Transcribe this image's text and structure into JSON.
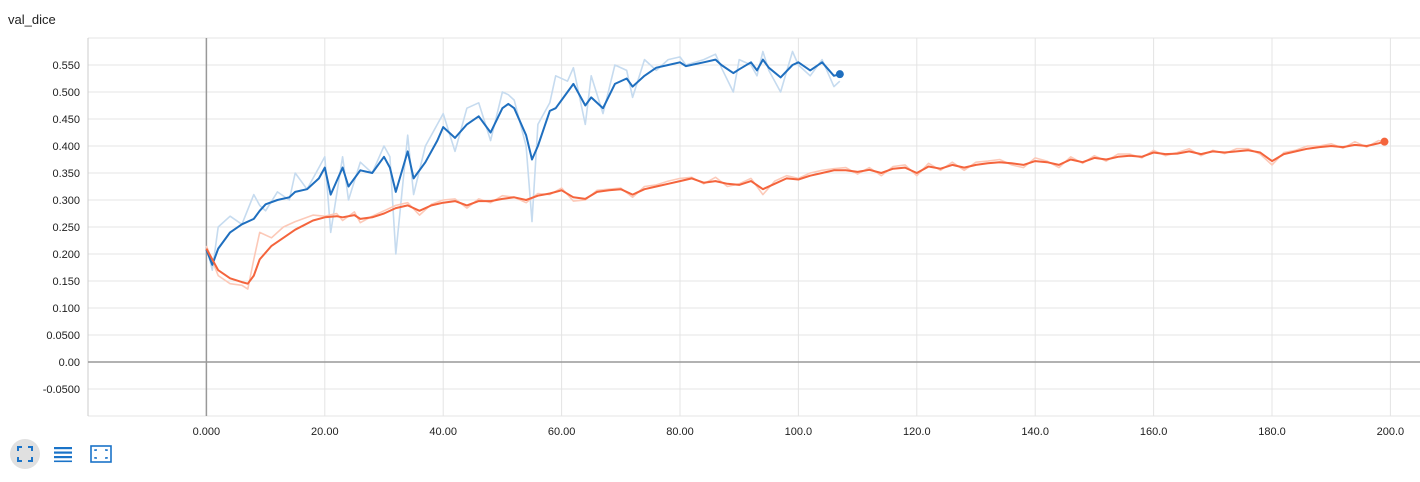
{
  "chart_data": {
    "type": "line",
    "title": "val_dice",
    "xlim": [
      -20,
      205
    ],
    "ylim": [
      -0.1,
      0.6
    ],
    "x_ticks": [
      0,
      20,
      40,
      60,
      80,
      100,
      120,
      140,
      160,
      180,
      200
    ],
    "x_tick_labels": [
      "0.000",
      "20.00",
      "40.00",
      "60.00",
      "80.00",
      "100.0",
      "120.0",
      "140.0",
      "160.0",
      "180.0",
      "200.0"
    ],
    "y_ticks": [
      -0.05,
      0,
      0.05,
      0.1,
      0.15,
      0.2,
      0.25,
      0.3,
      0.35,
      0.4,
      0.45,
      0.5,
      0.55
    ],
    "y_tick_labels": [
      "-0.0500",
      "0.00",
      "0.0500",
      "0.100",
      "0.150",
      "0.200",
      "0.250",
      "0.300",
      "0.350",
      "0.400",
      "0.450",
      "0.500",
      "0.550"
    ],
    "grid": true,
    "series": [
      {
        "color": "#1f6fbf",
        "raw_color": "#c6dbef",
        "x": [
          0,
          1,
          2,
          4,
          6,
          8,
          9,
          10,
          12,
          14,
          15,
          17,
          19,
          20,
          21,
          23,
          24,
          26,
          28,
          30,
          31,
          32,
          34,
          35,
          37,
          39,
          40,
          42,
          44,
          46,
          48,
          50,
          51,
          52,
          54,
          55,
          56,
          58,
          59,
          61,
          62,
          64,
          65,
          67,
          69,
          71,
          72,
          74,
          76,
          78,
          80,
          81,
          84,
          86,
          87,
          89,
          90,
          92,
          93,
          94,
          95,
          97,
          99,
          100,
          102,
          104,
          106,
          107
        ],
        "y": [
          0.208,
          0.18,
          0.21,
          0.24,
          0.255,
          0.265,
          0.28,
          0.292,
          0.3,
          0.305,
          0.315,
          0.32,
          0.34,
          0.36,
          0.31,
          0.36,
          0.325,
          0.355,
          0.35,
          0.38,
          0.36,
          0.315,
          0.39,
          0.34,
          0.37,
          0.41,
          0.435,
          0.415,
          0.44,
          0.455,
          0.425,
          0.47,
          0.478,
          0.47,
          0.42,
          0.375,
          0.4,
          0.465,
          0.47,
          0.5,
          0.515,
          0.475,
          0.49,
          0.47,
          0.515,
          0.525,
          0.51,
          0.53,
          0.545,
          0.55,
          0.555,
          0.548,
          0.555,
          0.56,
          0.55,
          0.535,
          0.542,
          0.555,
          0.54,
          0.56,
          0.545,
          0.527,
          0.55,
          0.555,
          0.54,
          0.555,
          0.53,
          0.533
        ],
        "raw_y": [
          0.215,
          0.17,
          0.25,
          0.27,
          0.255,
          0.31,
          0.29,
          0.28,
          0.315,
          0.3,
          0.35,
          0.32,
          0.36,
          0.38,
          0.24,
          0.38,
          0.3,
          0.37,
          0.35,
          0.4,
          0.38,
          0.2,
          0.42,
          0.31,
          0.4,
          0.44,
          0.46,
          0.39,
          0.47,
          0.48,
          0.41,
          0.5,
          0.495,
          0.485,
          0.4,
          0.26,
          0.44,
          0.48,
          0.53,
          0.52,
          0.545,
          0.44,
          0.53,
          0.46,
          0.55,
          0.54,
          0.49,
          0.56,
          0.54,
          0.56,
          0.565,
          0.55,
          0.56,
          0.57,
          0.545,
          0.5,
          0.56,
          0.55,
          0.53,
          0.575,
          0.54,
          0.5,
          0.575,
          0.55,
          0.53,
          0.56,
          0.51,
          0.52
        ]
      },
      {
        "color": "#f4643c",
        "raw_color": "#fcc9b8",
        "x": [
          0,
          2,
          4,
          6,
          7,
          8,
          9,
          11,
          13,
          15,
          18,
          20,
          22,
          23,
          25,
          26,
          28,
          30,
          32,
          34,
          36,
          38,
          40,
          42,
          44,
          46,
          48,
          50,
          52,
          54,
          56,
          58,
          60,
          62,
          64,
          66,
          68,
          70,
          72,
          74,
          76,
          78,
          80,
          82,
          84,
          86,
          88,
          90,
          92,
          94,
          96,
          98,
          100,
          102,
          104,
          106,
          108,
          110,
          112,
          114,
          116,
          118,
          120,
          122,
          124,
          126,
          128,
          130,
          132,
          134,
          136,
          138,
          140,
          142,
          144,
          146,
          148,
          150,
          152,
          154,
          156,
          158,
          160,
          162,
          164,
          166,
          168,
          170,
          172,
          174,
          176,
          178,
          180,
          182,
          184,
          186,
          188,
          190,
          192,
          194,
          196,
          198,
          199
        ],
        "y": [
          0.21,
          0.17,
          0.155,
          0.148,
          0.145,
          0.16,
          0.19,
          0.215,
          0.23,
          0.245,
          0.262,
          0.268,
          0.27,
          0.268,
          0.272,
          0.265,
          0.268,
          0.275,
          0.285,
          0.29,
          0.28,
          0.29,
          0.295,
          0.298,
          0.29,
          0.298,
          0.298,
          0.302,
          0.305,
          0.3,
          0.308,
          0.312,
          0.318,
          0.305,
          0.302,
          0.315,
          0.318,
          0.32,
          0.31,
          0.32,
          0.325,
          0.33,
          0.335,
          0.34,
          0.332,
          0.335,
          0.33,
          0.328,
          0.335,
          0.32,
          0.33,
          0.34,
          0.338,
          0.345,
          0.35,
          0.355,
          0.355,
          0.352,
          0.356,
          0.35,
          0.358,
          0.36,
          0.35,
          0.362,
          0.358,
          0.365,
          0.36,
          0.365,
          0.368,
          0.37,
          0.368,
          0.365,
          0.372,
          0.37,
          0.365,
          0.375,
          0.37,
          0.378,
          0.375,
          0.38,
          0.382,
          0.38,
          0.388,
          0.385,
          0.386,
          0.39,
          0.385,
          0.39,
          0.388,
          0.39,
          0.392,
          0.388,
          0.372,
          0.385,
          0.39,
          0.395,
          0.398,
          0.4,
          0.398,
          0.402,
          0.4,
          0.405,
          0.408
        ],
        "raw_y": [
          0.215,
          0.16,
          0.145,
          0.142,
          0.135,
          0.19,
          0.24,
          0.23,
          0.25,
          0.26,
          0.272,
          0.27,
          0.275,
          0.262,
          0.278,
          0.258,
          0.27,
          0.28,
          0.29,
          0.295,
          0.272,
          0.292,
          0.3,
          0.302,
          0.285,
          0.302,
          0.295,
          0.308,
          0.305,
          0.295,
          0.312,
          0.31,
          0.322,
          0.298,
          0.3,
          0.318,
          0.32,
          0.322,
          0.305,
          0.325,
          0.328,
          0.335,
          0.34,
          0.342,
          0.33,
          0.342,
          0.325,
          0.33,
          0.34,
          0.31,
          0.335,
          0.345,
          0.34,
          0.35,
          0.355,
          0.358,
          0.36,
          0.348,
          0.36,
          0.345,
          0.362,
          0.365,
          0.345,
          0.368,
          0.355,
          0.37,
          0.355,
          0.37,
          0.372,
          0.375,
          0.365,
          0.36,
          0.378,
          0.372,
          0.36,
          0.38,
          0.368,
          0.382,
          0.372,
          0.385,
          0.385,
          0.378,
          0.392,
          0.382,
          0.388,
          0.395,
          0.382,
          0.392,
          0.386,
          0.395,
          0.395,
          0.385,
          0.365,
          0.388,
          0.392,
          0.4,
          0.4,
          0.404,
          0.396,
          0.408,
          0.398,
          0.41,
          0.408
        ]
      }
    ]
  },
  "toolbar": {
    "expand_icon": "fullscreen-icon",
    "data_icon": "list-lines-icon",
    "fit_icon": "fit-domain-icon"
  }
}
